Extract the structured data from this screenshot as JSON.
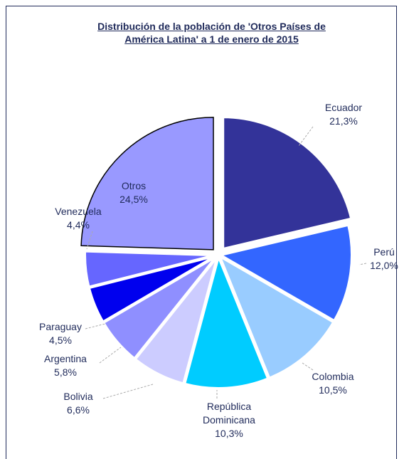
{
  "chart_data": {
    "type": "pie",
    "title": "Distribución de la población de 'Otros Países de América Latina' a 1 de enero de 2015",
    "categories": [
      "Ecuador",
      "Perú",
      "Colombia",
      "República Dominicana",
      "Bolivia",
      "Argentina",
      "Paraguay",
      "Venezuela",
      "Otros"
    ],
    "values": [
      21.3,
      12.0,
      10.5,
      10.3,
      6.6,
      5.8,
      4.5,
      4.4,
      24.5
    ],
    "value_labels": [
      "21,3%",
      "12,0%",
      "10,5%",
      "10,3%",
      "6,6%",
      "5,8%",
      "4,5%",
      "4,4%",
      "24,5%"
    ],
    "colors": [
      "#333399",
      "#3366ff",
      "#99ccff",
      "#00ccff",
      "#ccccff",
      "#8f8fff",
      "#0000ee",
      "#6666ff",
      "#9999ff"
    ]
  }
}
